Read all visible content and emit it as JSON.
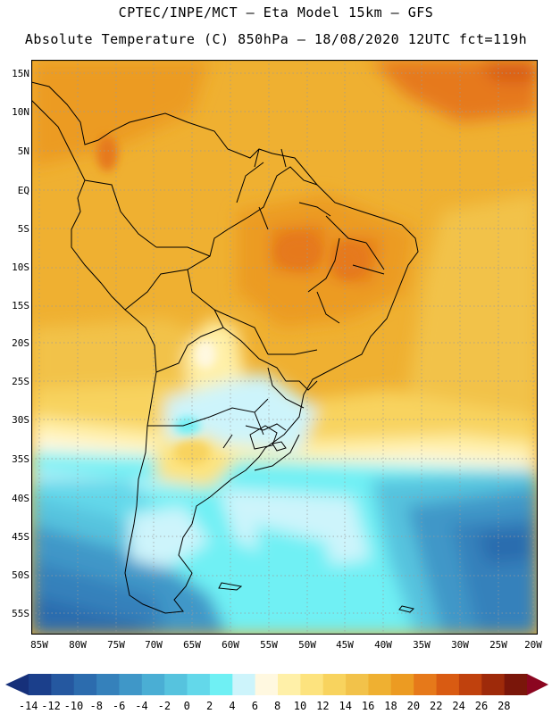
{
  "header": {
    "line1": "CPTEC/INPE/MCT –  Eta Model 15km – GFS",
    "line2": "Absolute Temperature (C) 850hPa – 18/08/2020 12UTC fct=119h"
  },
  "map": {
    "variable": "Absolute Temperature (C) 850hPa",
    "lat_labels": [
      "15N",
      "10N",
      "5N",
      "EQ",
      "5S",
      "10S",
      "15S",
      "20S",
      "25S",
      "30S",
      "35S",
      "40S",
      "45S",
      "50S",
      "55S"
    ],
    "lon_labels": [
      "85W",
      "80W",
      "75W",
      "70W",
      "65W",
      "60W",
      "55W",
      "50W",
      "45W",
      "40W",
      "35W",
      "30W",
      "25W",
      "20W"
    ]
  },
  "colorbar": {
    "labels": [
      "-14",
      "-12",
      "-10",
      "-8",
      "-6",
      "-4",
      "-2",
      "0",
      "2",
      "4",
      "6",
      "8",
      "10",
      "12",
      "14",
      "16",
      "18",
      "20",
      "22",
      "24",
      "26",
      "28"
    ],
    "colors": [
      "#1b3f8b",
      "#2558a0",
      "#2c6cae",
      "#3581bb",
      "#3f97c8",
      "#4aaed4",
      "#56c3de",
      "#63d8ea",
      "#6ff0f4",
      "#cdf4fb",
      "#fff8e0",
      "#fff0a8",
      "#fde37e",
      "#f8d35e",
      "#f2c24a",
      "#efb031",
      "#ec9b22",
      "#e6791a",
      "#d95b12",
      "#c0410d",
      "#9e2a0a",
      "#7a160a"
    ],
    "low_color": "#16307a",
    "high_color": "#8b0620"
  }
}
